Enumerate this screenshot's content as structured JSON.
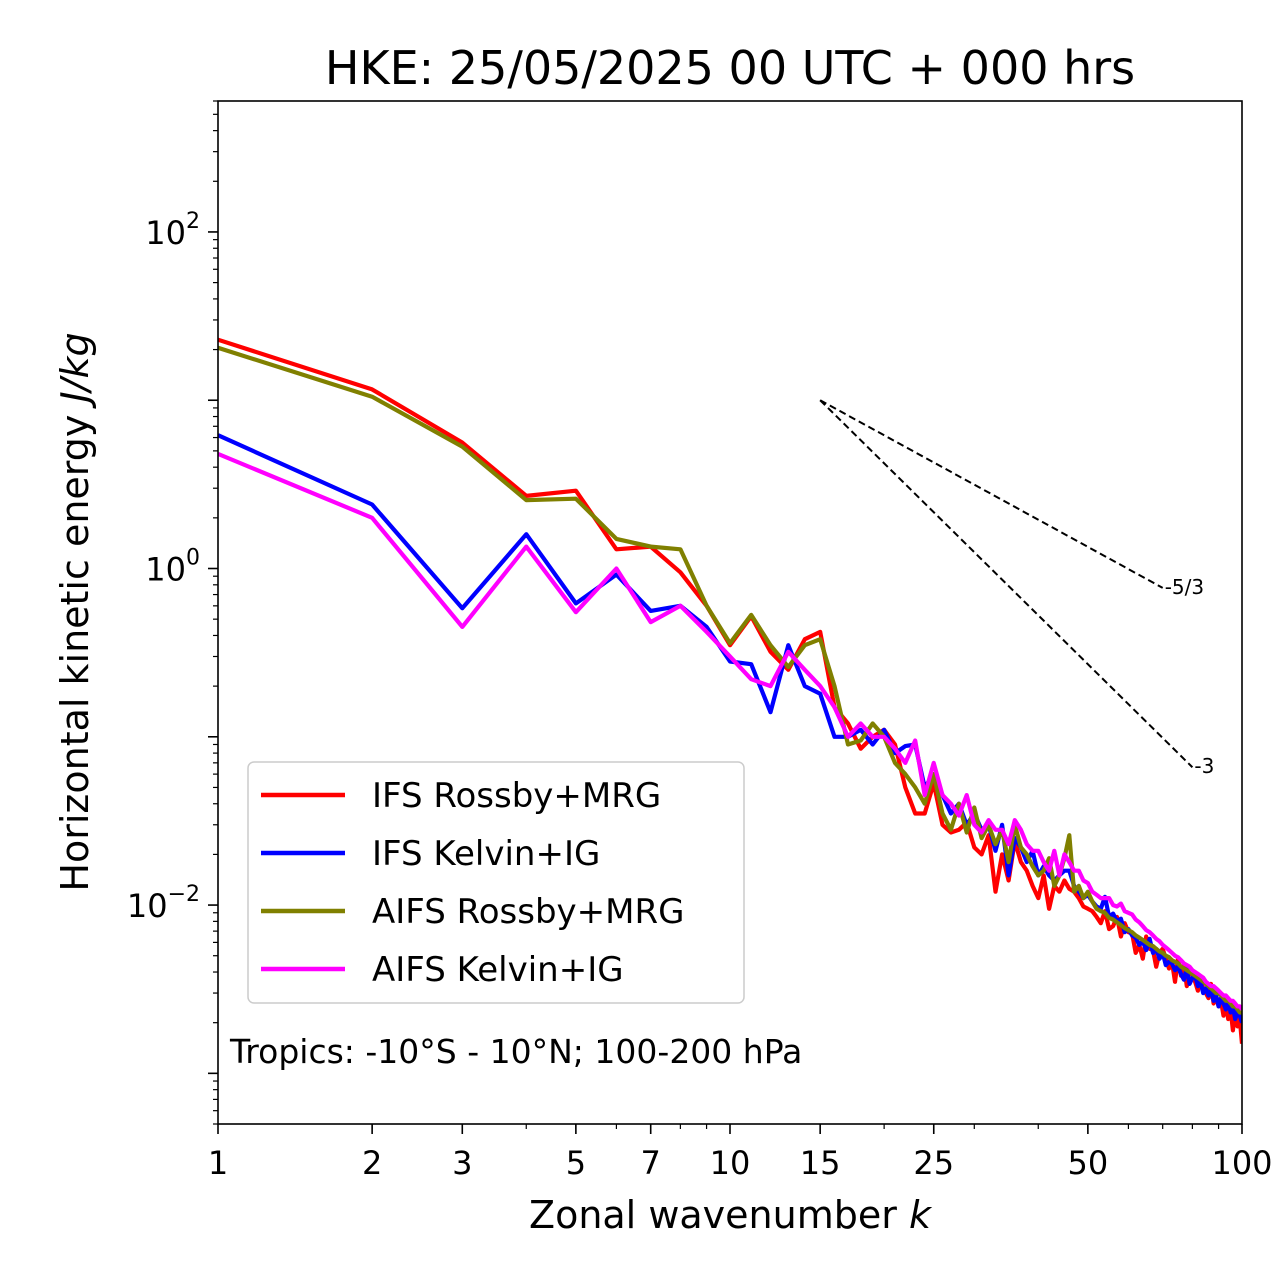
{
  "chart_data": {
    "type": "line",
    "title": "HKE: 25/05/2025 00 UTC + 000 hrs",
    "xlabel": "Zonal wavenumber k",
    "ylabel": "Horizontal kinetic energy J/kg",
    "xscale": "log",
    "yscale": "log",
    "xlim": [
      1,
      100
    ],
    "ylim": [
      0.0005,
      600
    ],
    "x_ticks": [
      "1",
      "2",
      "3",
      "5",
      "7",
      "10",
      "15",
      "25",
      "50",
      "100"
    ],
    "x_tick_values": [
      1,
      2,
      3,
      5,
      7,
      10,
      15,
      25,
      50,
      100
    ],
    "y_ticks": [
      {
        "value": 100,
        "base": "10",
        "exp": "2"
      },
      {
        "value": 1,
        "base": "10",
        "exp": "0"
      },
      {
        "value": 0.01,
        "base": "10",
        "exp": "−2"
      }
    ],
    "legend_position": "lower-left",
    "annotation": "Tropics: -10°S - 10°N; 100-200 hPa",
    "reference_slopes": [
      {
        "label": "-5/3",
        "slope": -1.6667,
        "x_start": 15,
        "y_start": 10.0,
        "x_end": 70
      },
      {
        "label": "-3",
        "slope": -3,
        "x_start": 15,
        "y_start": 10.0,
        "x_end": 80
      }
    ],
    "x": [
      1,
      2,
      3,
      4,
      5,
      6,
      7,
      8,
      9,
      10,
      11,
      12,
      13,
      14,
      15,
      16,
      17,
      18,
      19,
      20,
      21,
      22,
      23,
      24,
      25,
      26,
      27,
      28,
      29,
      30,
      31,
      32,
      33,
      34,
      35,
      36,
      37,
      38,
      39,
      40,
      41,
      42,
      43,
      44,
      45,
      46,
      47,
      48,
      49,
      50,
      51,
      52,
      53,
      54,
      55,
      56,
      57,
      58,
      59,
      60,
      61,
      62,
      63,
      64,
      65,
      66,
      67,
      68,
      69,
      70,
      71,
      72,
      73,
      74,
      75,
      76,
      77,
      78,
      79,
      80,
      81,
      82,
      83,
      84,
      85,
      86,
      87,
      88,
      89,
      90,
      91,
      92,
      93,
      94,
      95,
      96,
      97,
      98,
      99,
      100
    ],
    "series": [
      {
        "name": "IFS Rossby+MRG",
        "color": "#ff0000",
        "values": [
          22.9,
          11.6,
          5.6,
          2.7,
          2.9,
          1.3,
          1.35,
          0.95,
          0.6,
          0.35,
          0.52,
          0.32,
          0.25,
          0.38,
          0.42,
          0.15,
          0.12,
          0.085,
          0.1,
          0.11,
          0.09,
          0.05,
          0.035,
          0.035,
          0.053,
          0.03,
          0.027,
          0.028,
          0.031,
          0.022,
          0.02,
          0.026,
          0.012,
          0.02,
          0.014,
          0.024,
          0.018,
          0.016,
          0.013,
          0.011,
          0.015,
          0.0095,
          0.013,
          0.012,
          0.014,
          0.0125,
          0.012,
          0.011,
          0.0098,
          0.0095,
          0.0092,
          0.0085,
          0.0078,
          0.0092,
          0.0072,
          0.0075,
          0.0085,
          0.0065,
          0.0078,
          0.0069,
          0.0068,
          0.0052,
          0.0058,
          0.0048,
          0.0065,
          0.0055,
          0.0054,
          0.0043,
          0.0052,
          0.0055,
          0.0048,
          0.0042,
          0.0046,
          0.0035,
          0.0048,
          0.0038,
          0.0044,
          0.0033,
          0.0041,
          0.0039,
          0.0035,
          0.0031,
          0.0036,
          0.0032,
          0.003,
          0.0028,
          0.0034,
          0.0026,
          0.0029,
          0.0025,
          0.0027,
          0.0022,
          0.0026,
          0.0021,
          0.0024,
          0.0018,
          0.0023,
          0.0019,
          0.0021,
          0.0015
        ]
      },
      {
        "name": "IFS Kelvin+IG",
        "color": "#0000ff",
        "values": [
          6.2,
          2.4,
          0.58,
          1.6,
          0.62,
          0.92,
          0.56,
          0.6,
          0.45,
          0.28,
          0.27,
          0.14,
          0.35,
          0.2,
          0.18,
          0.1,
          0.1,
          0.11,
          0.09,
          0.11,
          0.08,
          0.088,
          0.09,
          0.05,
          0.06,
          0.045,
          0.035,
          0.04,
          0.03,
          0.035,
          0.028,
          0.03,
          0.021,
          0.03,
          0.015,
          0.025,
          0.022,
          0.018,
          0.021,
          0.015,
          0.017,
          0.015,
          0.014,
          0.015,
          0.016,
          0.016,
          0.013,
          0.012,
          0.011,
          0.0115,
          0.0105,
          0.0098,
          0.0095,
          0.0112,
          0.0085,
          0.0089,
          0.008,
          0.0083,
          0.0069,
          0.0072,
          0.0066,
          0.0064,
          0.0058,
          0.0061,
          0.0054,
          0.0063,
          0.0052,
          0.0055,
          0.0048,
          0.0052,
          0.0044,
          0.0046,
          0.0045,
          0.0041,
          0.0043,
          0.0039,
          0.0036,
          0.0042,
          0.0034,
          0.0037,
          0.0038,
          0.0033,
          0.0035,
          0.003,
          0.0032,
          0.0029,
          0.0031,
          0.0027,
          0.0029,
          0.0025,
          0.0028,
          0.0026,
          0.0024,
          0.0027,
          0.0023,
          0.0025,
          0.0021,
          0.0023,
          0.0022,
          0.002
        ]
      },
      {
        "name": "AIFS Rossby+MRG",
        "color": "#808000",
        "values": [
          20.5,
          10.5,
          5.3,
          2.55,
          2.6,
          1.5,
          1.35,
          1.3,
          0.6,
          0.36,
          0.53,
          0.35,
          0.26,
          0.35,
          0.38,
          0.2,
          0.09,
          0.095,
          0.12,
          0.1,
          0.07,
          0.06,
          0.05,
          0.04,
          0.06,
          0.035,
          0.028,
          0.04,
          0.027,
          0.038,
          0.025,
          0.03,
          0.023,
          0.028,
          0.018,
          0.03,
          0.022,
          0.02,
          0.017,
          0.015,
          0.016,
          0.019,
          0.013,
          0.015,
          0.019,
          0.026,
          0.012,
          0.013,
          0.011,
          0.012,
          0.0105,
          0.0095,
          0.0092,
          0.009,
          0.0084,
          0.0082,
          0.0079,
          0.0076,
          0.0073,
          0.0071,
          0.0069,
          0.0066,
          0.0064,
          0.0062,
          0.006,
          0.0058,
          0.0057,
          0.0055,
          0.0053,
          0.0052,
          0.005,
          0.0049,
          0.0047,
          0.0046,
          0.0045,
          0.0043,
          0.0042,
          0.0041,
          0.004,
          0.0039,
          0.0038,
          0.0037,
          0.0036,
          0.0035,
          0.0034,
          0.0033,
          0.0032,
          0.0031,
          0.003,
          0.003,
          0.0029,
          0.0028,
          0.0027,
          0.0027,
          0.0026,
          0.0025,
          0.0025,
          0.0024,
          0.0023,
          0.0023
        ]
      },
      {
        "name": "AIFS Kelvin+IG",
        "color": "#ff00ff",
        "values": [
          4.8,
          2.0,
          0.45,
          1.35,
          0.55,
          1.0,
          0.48,
          0.6,
          0.42,
          0.3,
          0.22,
          0.2,
          0.32,
          0.25,
          0.2,
          0.15,
          0.1,
          0.12,
          0.1,
          0.1,
          0.085,
          0.07,
          0.095,
          0.045,
          0.07,
          0.045,
          0.04,
          0.034,
          0.045,
          0.03,
          0.027,
          0.032,
          0.028,
          0.028,
          0.023,
          0.032,
          0.028,
          0.023,
          0.021,
          0.021,
          0.018,
          0.016,
          0.021,
          0.015,
          0.02,
          0.018,
          0.016,
          0.016,
          0.014,
          0.0135,
          0.012,
          0.0115,
          0.011,
          0.011,
          0.011,
          0.01,
          0.0098,
          0.0102,
          0.0092,
          0.009,
          0.0088,
          0.0082,
          0.0079,
          0.0075,
          0.0071,
          0.0069,
          0.0066,
          0.0063,
          0.0061,
          0.0058,
          0.0056,
          0.0054,
          0.0052,
          0.005,
          0.0049,
          0.0047,
          0.0045,
          0.0044,
          0.0043,
          0.0041,
          0.004,
          0.0039,
          0.0038,
          0.0037,
          0.0035,
          0.0034,
          0.0033,
          0.0033,
          0.0032,
          0.0031,
          0.003,
          0.0029,
          0.0029,
          0.0028,
          0.0027,
          0.0027,
          0.0026,
          0.0025,
          0.0025,
          0.0024
        ]
      }
    ]
  }
}
